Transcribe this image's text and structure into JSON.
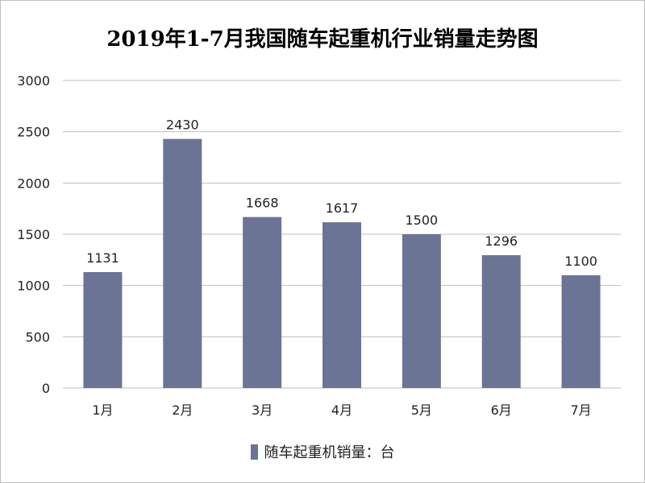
{
  "chart_data": {
    "type": "bar",
    "title": "2019年1-7月我国随车起重机行业销量走势图",
    "categories": [
      "1月",
      "2月",
      "3月",
      "4月",
      "5月",
      "6月",
      "7月"
    ],
    "series": [
      {
        "name": "随车起重机销量：台",
        "values": [
          1131,
          2430,
          1668,
          1617,
          1500,
          1296,
          1100
        ]
      }
    ],
    "ylim": [
      0,
      3000
    ],
    "yticks": [
      0,
      500,
      1000,
      1500,
      2000,
      2500,
      3000
    ],
    "grid": true,
    "legend": "bottom",
    "bar_color": "#6b7495",
    "grid_color": "#bfbfbf"
  }
}
